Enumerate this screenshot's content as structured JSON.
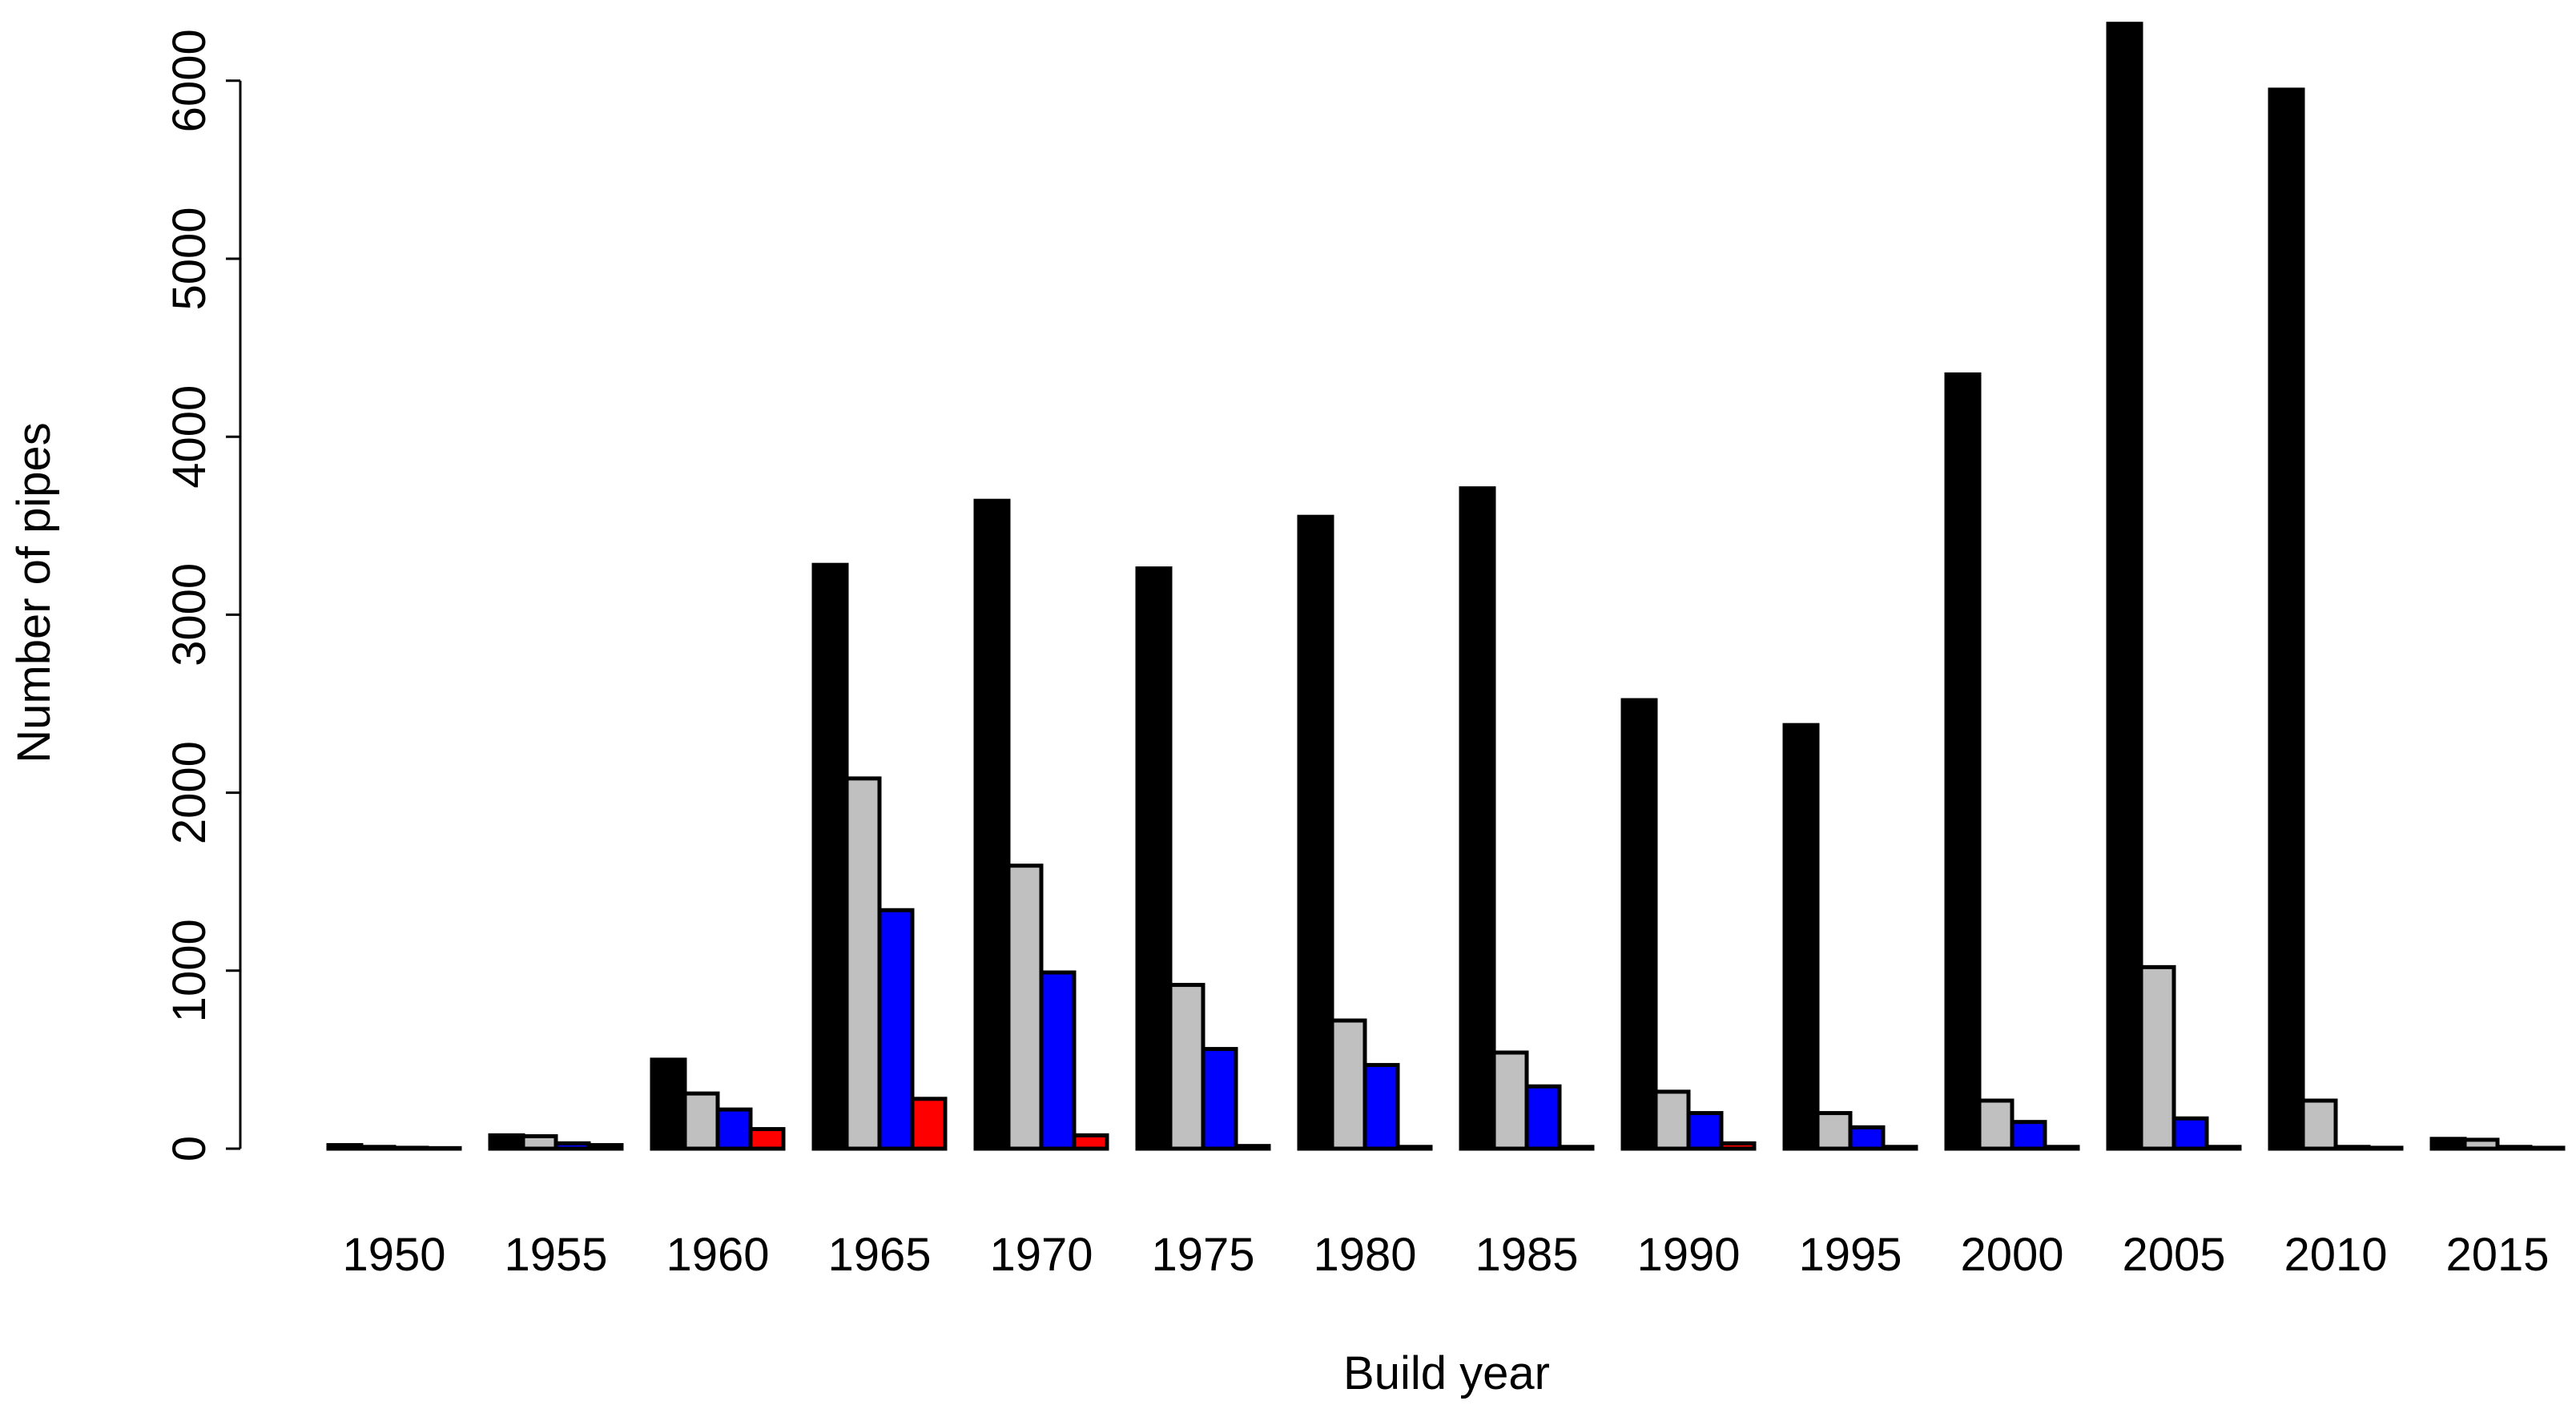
{
  "chart_data": {
    "type": "bar",
    "title": "",
    "xlabel": "Build year",
    "ylabel": "Number of pipes",
    "ylim": [
      0,
      6300
    ],
    "yticks": [
      "0",
      "1000",
      "2000",
      "3000",
      "4000",
      "5000",
      "6000"
    ],
    "grid": false,
    "legend": "none",
    "categories": [
      "1950",
      "1955",
      "1960",
      "1965",
      "1970",
      "1975",
      "1980",
      "1985",
      "1990",
      "1995",
      "2000",
      "2005",
      "2010",
      "2015"
    ],
    "series": [
      {
        "color": "#000000",
        "values": [
          20,
          75,
          500,
          3280,
          3640,
          3260,
          3550,
          3710,
          2520,
          2380,
          4350,
          6320,
          5950,
          55
        ]
      },
      {
        "color": "#c0c0c0",
        "values": [
          10,
          70,
          310,
          2080,
          1590,
          920,
          720,
          540,
          320,
          200,
          270,
          1020,
          270,
          50
        ]
      },
      {
        "color": "#0000ff",
        "values": [
          5,
          30,
          220,
          1340,
          990,
          560,
          470,
          350,
          200,
          120,
          150,
          170,
          10,
          10
        ]
      },
      {
        "color": "#ff0000",
        "values": [
          3,
          20,
          110,
          280,
          75,
          15,
          10,
          10,
          30,
          10,
          10,
          10,
          5,
          5
        ]
      }
    ]
  }
}
